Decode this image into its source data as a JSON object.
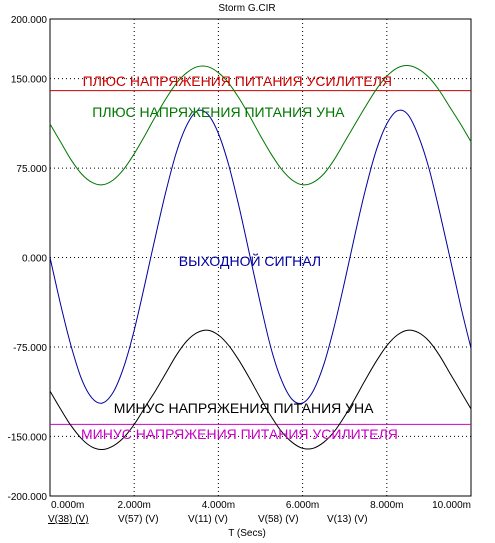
{
  "title": "Storm G.CIR",
  "chart_data": {
    "type": "line",
    "title": "Storm G.CIR",
    "xlabel": "T (Secs)",
    "ylabel": "",
    "xlim": [
      0,
      10
    ],
    "ylim": [
      -200,
      200
    ],
    "grid": true,
    "x_ticks": [
      "0.000m",
      "2.000m",
      "4.000m",
      "6.000m",
      "8.000m",
      "10.000m"
    ],
    "y_ticks": [
      "200.000",
      "150.000",
      "75.000",
      "0.000",
      "-75.000",
      "-150.000",
      "-200.000"
    ],
    "y_tick_values": [
      200,
      150,
      75,
      0,
      -75,
      -150,
      -200
    ],
    "x": [
      0,
      0.25,
      0.5,
      0.75,
      1.0,
      1.25,
      1.5,
      1.75,
      2.0,
      2.25,
      2.5,
      2.75,
      3.0,
      3.25,
      3.5,
      3.75,
      4.0,
      4.25,
      4.5,
      4.75,
      5.0,
      5.25,
      5.5,
      5.75,
      6.0,
      6.25,
      6.5,
      6.75,
      7.0,
      7.25,
      7.5,
      7.75,
      8.0,
      8.25,
      8.5,
      8.75,
      9.0,
      9.25,
      9.5,
      9.75,
      10.0
    ],
    "series": [
      {
        "name": "V(38) (V)",
        "color": "#0000a0",
        "values": [
          0,
          -39,
          -74,
          -102,
          -118,
          -122,
          -113,
          -92,
          -61,
          -23,
          17,
          55,
          88,
          111,
          123,
          120,
          104,
          77,
          41,
          1,
          -39,
          -76,
          -103,
          -119,
          -122,
          -112,
          -90,
          -58,
          -20,
          20,
          58,
          90,
          112,
          123,
          120,
          102,
          75,
          39,
          0,
          -40,
          -76
        ]
      },
      {
        "name": "V(57) (V)",
        "color": "#cc0000",
        "values": [
          140,
          140,
          140,
          140,
          140,
          140,
          140,
          140,
          140,
          140,
          140,
          140,
          140,
          140,
          140,
          140,
          140,
          140,
          140,
          140,
          140,
          140,
          140,
          140,
          140,
          140,
          140,
          140,
          140,
          140,
          140,
          140,
          140,
          140,
          140,
          140,
          140,
          140,
          140,
          140,
          140
        ]
      },
      {
        "name": "V(11) (V)",
        "color": "#007700",
        "values": [
          112,
          97,
          82,
          70,
          63,
          61,
          65,
          74,
          87,
          102,
          118,
          133,
          146,
          155,
          160,
          160,
          155,
          146,
          133,
          118,
          102,
          87,
          74,
          65,
          61,
          63,
          70,
          82,
          97,
          112,
          127,
          141,
          152,
          159,
          161,
          158,
          151,
          140,
          126,
          112,
          97
        ]
      },
      {
        "name": "V(58) (V)",
        "color": "#cc00cc",
        "values": [
          -140,
          -140,
          -140,
          -140,
          -140,
          -140,
          -140,
          -140,
          -140,
          -140,
          -140,
          -140,
          -140,
          -140,
          -140,
          -140,
          -140,
          -140,
          -140,
          -140,
          -140,
          -140,
          -140,
          -140,
          -140,
          -140,
          -140,
          -140,
          -140,
          -140,
          -140,
          -140,
          -140,
          -140,
          -140,
          -140,
          -140,
          -140,
          -140,
          -140,
          -140
        ]
      },
      {
        "name": "V(13) (V)",
        "color": "#000000",
        "values": [
          -112,
          -127,
          -141,
          -152,
          -159,
          -161,
          -158,
          -151,
          -140,
          -126,
          -112,
          -97,
          -82,
          -70,
          -63,
          -61,
          -65,
          -74,
          -87,
          -102,
          -118,
          -133,
          -146,
          -155,
          -160,
          -160,
          -155,
          -146,
          -133,
          -118,
          -102,
          -87,
          -74,
          -65,
          -61,
          -63,
          -70,
          -82,
          -97,
          -112,
          -127
        ]
      }
    ],
    "annotations": [
      {
        "text": "ПЛЮС НАПРЯЖЕНИЯ ПИТАНИЯ УСИЛИТЕЛЯ",
        "color": "#cc0000",
        "x": 4.45,
        "y": 148
      },
      {
        "text": "ПЛЮС НАПРЯЖЕНИЯ ПИТАНИЯ УНА",
        "color": "#007700",
        "x": 4.0,
        "y": 122
      },
      {
        "text": "ВЫХОДНОЙ СИГНАЛ",
        "color": "#0000a0",
        "x": 4.75,
        "y": -3
      },
      {
        "text": "МИНУС НАПРЯЖЕНИЯ ПИТАНИЯ УНА",
        "color": "#000000",
        "x": 4.6,
        "y": -126
      },
      {
        "text": "МИНУС НАПРЯЖЕНИЯ ПИТАНИЯ УСИЛИТЕЛЯ",
        "color": "#cc00cc",
        "x": 4.5,
        "y": -148
      }
    ]
  }
}
